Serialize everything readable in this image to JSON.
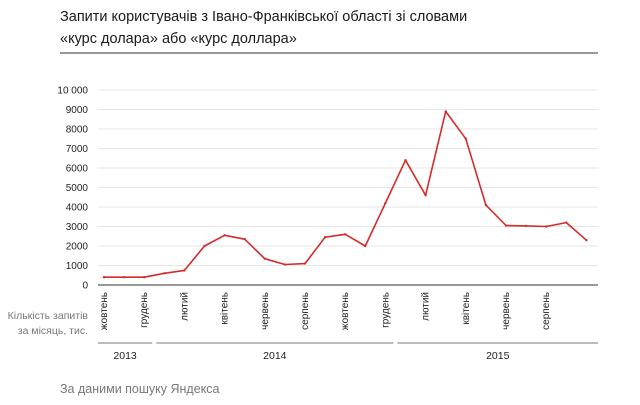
{
  "title_lines": [
    "Запити користувачів з Івано-Франківської області зі словами",
    "«курс долара» або «курс доллара»"
  ],
  "ylabel_lines": [
    "Кількість запитів",
    "за місяць, тис."
  ],
  "source": "За даними пошуку Яндекса",
  "colors": {
    "line": "#d62b2b",
    "grid": "#dddddd",
    "axis": "#333333",
    "text": "#222222",
    "muted": "#777777"
  },
  "chart_data": {
    "type": "line",
    "title": "Запити користувачів з Івано-Франківської області зі словами «курс долара» або «курс доллара»",
    "xlabel": "",
    "ylabel": "Кількість запитів за місяць, тис.",
    "ylim": [
      0,
      10000
    ],
    "yticks": [
      0,
      1000,
      2000,
      3000,
      4000,
      5000,
      6000,
      7000,
      8000,
      9000,
      10000
    ],
    "ytick_labels": [
      "0",
      "1000",
      "2000",
      "3000",
      "4000",
      "5000",
      "6000",
      "7000",
      "8000",
      "9000",
      "10 000"
    ],
    "grid": true,
    "x": [
      "2013-10",
      "2013-11",
      "2013-12",
      "2014-01",
      "2014-02",
      "2014-03",
      "2014-04",
      "2014-05",
      "2014-06",
      "2014-07",
      "2014-08",
      "2014-09",
      "2014-10",
      "2014-11",
      "2014-12",
      "2015-01",
      "2015-02",
      "2015-03",
      "2015-04",
      "2015-05",
      "2015-06",
      "2015-07",
      "2015-08",
      "2015-09",
      "2015-10"
    ],
    "series": [
      {
        "values": [
          400,
          400,
          400,
          600,
          750,
          2000,
          2550,
          2350,
          1350,
          1050,
          1100,
          2450,
          2600,
          2000,
          4200,
          6400,
          4600,
          8900,
          7500,
          4100,
          3050,
          3030,
          3000,
          3200,
          2300
        ]
      }
    ],
    "month_labels": [
      {
        "month": "2013-10",
        "label": "жовтень"
      },
      {
        "month": "2013-12",
        "label": "грудень"
      },
      {
        "month": "2014-02",
        "label": "лютий"
      },
      {
        "month": "2014-04",
        "label": "квітень"
      },
      {
        "month": "2014-06",
        "label": "червень"
      },
      {
        "month": "2014-08",
        "label": "серпень"
      },
      {
        "month": "2014-10",
        "label": "жовтень"
      },
      {
        "month": "2014-12",
        "label": "грудень"
      },
      {
        "month": "2015-02",
        "label": "лютий"
      },
      {
        "month": "2015-04",
        "label": "квітень"
      },
      {
        "month": "2015-06",
        "label": "червень"
      },
      {
        "month": "2015-08",
        "label": "серпень"
      }
    ],
    "years": [
      {
        "label": "2013",
        "from": "2013-10",
        "to": "2013-12"
      },
      {
        "label": "2014",
        "from": "2014-01",
        "to": "2014-12"
      },
      {
        "label": "2015",
        "from": "2015-01",
        "to": "2015-10"
      }
    ]
  }
}
